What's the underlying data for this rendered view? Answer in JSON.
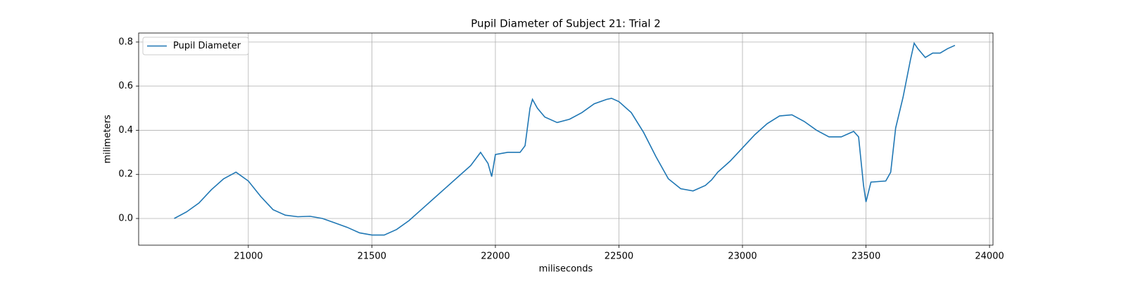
{
  "chart_data": {
    "type": "line",
    "title": "Pupil Diameter of Subject 21: Trial 2",
    "x_label": "miliseconds",
    "y_label": "milimeters",
    "x": [
      20700,
      20750,
      20800,
      20850,
      20900,
      20950,
      21000,
      21050,
      21100,
      21150,
      21200,
      21250,
      21300,
      21350,
      21400,
      21450,
      21500,
      21550,
      21600,
      21650,
      21700,
      21750,
      21800,
      21850,
      21900,
      21940,
      21970,
      21985,
      22000,
      22050,
      22100,
      22120,
      22140,
      22150,
      22170,
      22200,
      22250,
      22300,
      22350,
      22400,
      22450,
      22470,
      22500,
      22550,
      22600,
      22650,
      22700,
      22750,
      22800,
      22850,
      22875,
      22900,
      22950,
      23000,
      23050,
      23100,
      23150,
      23200,
      23250,
      23300,
      23350,
      23400,
      23450,
      23470,
      23490,
      23500,
      23520,
      23580,
      23600,
      23620,
      23650,
      23680,
      23695,
      23710,
      23740,
      23770,
      23800,
      23830,
      23860
    ],
    "series": [
      {
        "name": "Pupil Diameter",
        "color": "#1f77b4",
        "values": [
          0.0,
          0.03,
          0.07,
          0.13,
          0.18,
          0.21,
          0.17,
          0.1,
          0.04,
          0.015,
          0.008,
          0.01,
          0.0,
          -0.02,
          -0.04,
          -0.065,
          -0.075,
          -0.075,
          -0.05,
          -0.01,
          0.04,
          0.09,
          0.14,
          0.19,
          0.24,
          0.3,
          0.25,
          0.19,
          0.29,
          0.3,
          0.3,
          0.33,
          0.5,
          0.54,
          0.5,
          0.46,
          0.435,
          0.45,
          0.48,
          0.52,
          0.54,
          0.545,
          0.53,
          0.48,
          0.39,
          0.28,
          0.18,
          0.135,
          0.125,
          0.15,
          0.175,
          0.21,
          0.26,
          0.32,
          0.38,
          0.43,
          0.465,
          0.47,
          0.44,
          0.4,
          0.37,
          0.37,
          0.395,
          0.37,
          0.15,
          0.075,
          0.165,
          0.17,
          0.21,
          0.41,
          0.55,
          0.72,
          0.795,
          0.77,
          0.73,
          0.75,
          0.75,
          0.77,
          0.785
        ]
      }
    ],
    "xlim": [
      20556,
      24014
    ],
    "ylim": [
      -0.121,
      0.841
    ],
    "xticks": [
      21000,
      21500,
      22000,
      22500,
      23000,
      23500,
      24000
    ],
    "yticks": [
      {
        "value": 0,
        "label": "0.0"
      },
      0.2,
      0.4,
      0.6,
      0.8
    ],
    "grid": true,
    "legend": "upper left"
  }
}
